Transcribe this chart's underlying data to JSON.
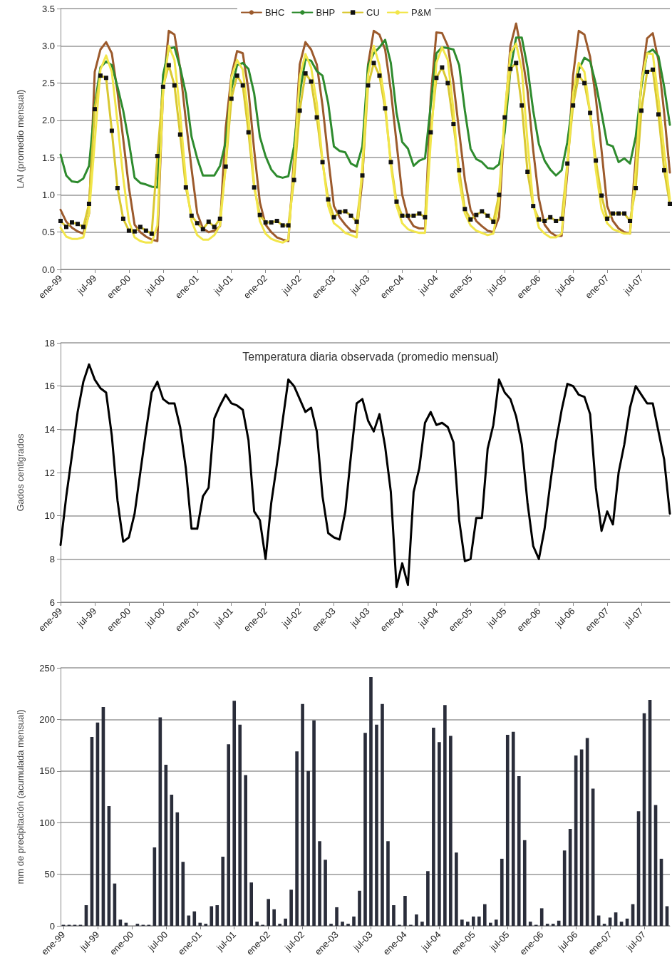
{
  "chart_data": [
    {
      "type": "line",
      "ylabel": "LAI (promedio mensual)",
      "legend": "top",
      "grid": "y",
      "ylim": [
        0,
        3.5
      ],
      "yticks": [
        {
          "value": 0,
          "label": "0.0"
        },
        {
          "value": 0.5,
          "label": "0.5"
        },
        {
          "value": 1,
          "label": "1.0"
        },
        {
          "value": 1.5,
          "label": "1.5"
        },
        {
          "value": 2,
          "label": "2.0"
        },
        {
          "value": 2.5,
          "label": "2.5"
        },
        {
          "value": 3,
          "label": "3.0"
        },
        {
          "value": 3.5,
          "label": "3.5"
        }
      ],
      "categories": [
        "ene-99",
        null,
        null,
        null,
        null,
        null,
        "jul-99",
        null,
        null,
        null,
        null,
        null,
        "ene-00",
        null,
        null,
        null,
        null,
        null,
        "jul-00",
        null,
        null,
        null,
        null,
        null,
        "ene-01",
        null,
        null,
        null,
        null,
        null,
        "jul-01",
        null,
        null,
        null,
        null,
        null,
        "ene-02",
        null,
        null,
        null,
        null,
        null,
        "jul-02",
        null,
        null,
        null,
        null,
        null,
        "ene-03",
        null,
        null,
        null,
        null,
        null,
        "jul-03",
        null,
        null,
        null,
        null,
        null,
        "ene-04",
        null,
        null,
        null,
        null,
        null,
        "jul-04",
        null,
        null,
        null,
        null,
        null,
        "ene-05",
        null,
        null,
        null,
        null,
        null,
        "jul-05",
        null,
        null,
        null,
        null,
        null,
        "ene-06",
        null,
        null,
        null,
        null,
        null,
        "jul-06",
        null,
        null,
        null,
        null,
        null,
        "ene-07",
        null,
        null,
        null,
        null,
        null,
        "jul-07",
        null,
        null,
        null,
        null,
        null
      ],
      "series": [
        {
          "name": "BHC",
          "color": "#9c5a2c",
          "values": [
            0.8,
            0.64,
            0.56,
            0.51,
            0.48,
            0.75,
            2.65,
            2.95,
            3.05,
            2.9,
            2.38,
            1.75,
            1.1,
            0.6,
            0.5,
            0.44,
            0.4,
            0.38,
            2.4,
            3.2,
            3.15,
            2.7,
            2.0,
            1.35,
            0.75,
            0.55,
            0.5,
            0.52,
            0.58,
            1.9,
            2.6,
            2.93,
            2.9,
            2.4,
            1.6,
            0.9,
            0.6,
            0.5,
            0.43,
            0.4,
            0.38,
            1.5,
            2.75,
            3.05,
            2.95,
            2.75,
            2.2,
            1.5,
            0.85,
            0.7,
            0.6,
            0.52,
            0.5,
            1.2,
            2.75,
            3.2,
            3.15,
            2.95,
            2.4,
            1.7,
            1.0,
            0.7,
            0.58,
            0.55,
            0.55,
            2.3,
            3.18,
            3.17,
            3.0,
            2.5,
            1.85,
            1.2,
            0.8,
            0.65,
            0.58,
            0.52,
            0.5,
            0.7,
            2.0,
            3.0,
            3.3,
            2.9,
            2.4,
            1.6,
            0.95,
            0.6,
            0.5,
            0.45,
            0.45,
            1.3,
            2.6,
            3.2,
            3.15,
            2.85,
            2.3,
            1.6,
            0.85,
            0.65,
            0.55,
            0.5,
            0.48,
            1.5,
            2.5,
            3.1,
            3.17,
            2.8,
            2.1,
            1.3
          ]
        },
        {
          "name": "BHP",
          "color": "#2e8b2e",
          "values": [
            1.54,
            1.26,
            1.18,
            1.17,
            1.22,
            1.39,
            2.2,
            2.71,
            2.79,
            2.74,
            2.45,
            2.13,
            1.71,
            1.23,
            1.16,
            1.14,
            1.11,
            1.1,
            2.61,
            2.96,
            2.98,
            2.71,
            2.36,
            1.78,
            1.49,
            1.26,
            1.26,
            1.26,
            1.39,
            1.71,
            2.42,
            2.74,
            2.77,
            2.69,
            2.36,
            1.78,
            1.52,
            1.34,
            1.25,
            1.23,
            1.25,
            1.65,
            2.36,
            2.82,
            2.8,
            2.66,
            2.6,
            2.23,
            1.65,
            1.59,
            1.57,
            1.42,
            1.38,
            1.65,
            2.74,
            2.9,
            2.98,
            3.08,
            2.77,
            2.1,
            1.71,
            1.62,
            1.39,
            1.46,
            1.49,
            2.2,
            2.9,
            2.98,
            2.97,
            2.95,
            2.74,
            2.13,
            1.62,
            1.48,
            1.44,
            1.36,
            1.35,
            1.41,
            1.84,
            2.68,
            3.11,
            3.11,
            2.71,
            2.13,
            1.68,
            1.46,
            1.34,
            1.26,
            1.33,
            1.71,
            2.29,
            2.68,
            2.84,
            2.79,
            2.49,
            2.1,
            1.68,
            1.65,
            1.44,
            1.49,
            1.42,
            1.78,
            2.45,
            2.9,
            2.95,
            2.86,
            2.45,
            1.94
          ]
        },
        {
          "name": "CU",
          "color": "#d9c832",
          "marker": "square",
          "values": [
            0.65,
            0.57,
            0.63,
            0.61,
            0.57,
            0.88,
            2.15,
            2.6,
            2.57,
            1.86,
            1.09,
            0.68,
            0.52,
            0.51,
            0.57,
            0.52,
            0.48,
            1.52,
            2.45,
            2.74,
            2.47,
            1.81,
            1.1,
            0.72,
            0.62,
            0.54,
            0.64,
            0.57,
            0.68,
            1.38,
            2.29,
            2.6,
            2.47,
            1.84,
            1.1,
            0.73,
            0.63,
            0.63,
            0.65,
            0.59,
            0.59,
            1.2,
            2.13,
            2.63,
            2.52,
            2.04,
            1.44,
            0.94,
            0.7,
            0.77,
            0.78,
            0.72,
            0.64,
            1.26,
            2.47,
            2.77,
            2.6,
            2.16,
            1.44,
            0.91,
            0.72,
            0.72,
            0.72,
            0.75,
            0.7,
            1.84,
            2.57,
            2.71,
            2.5,
            1.95,
            1.33,
            0.81,
            0.67,
            0.73,
            0.78,
            0.72,
            0.64,
            1.0,
            2.04,
            2.69,
            2.77,
            2.2,
            1.31,
            0.85,
            0.67,
            0.65,
            0.7,
            0.65,
            0.68,
            1.42,
            2.2,
            2.6,
            2.5,
            2.1,
            1.46,
            0.99,
            0.68,
            0.75,
            0.75,
            0.75,
            0.65,
            1.09,
            2.13,
            2.65,
            2.68,
            2.08,
            1.33,
            0.88
          ]
        },
        {
          "name": "P&M",
          "color": "#f2e64a",
          "values": [
            0.56,
            0.44,
            0.41,
            0.41,
            0.43,
            0.75,
            1.71,
            2.68,
            2.87,
            2.65,
            1.97,
            1.23,
            0.65,
            0.43,
            0.38,
            0.36,
            0.36,
            0.59,
            2.36,
            3.0,
            2.81,
            2.1,
            1.2,
            0.65,
            0.46,
            0.4,
            0.4,
            0.46,
            0.59,
            1.39,
            2.58,
            2.81,
            2.68,
            2.04,
            1.14,
            0.65,
            0.48,
            0.41,
            0.38,
            0.36,
            0.4,
            1.39,
            2.58,
            2.89,
            2.71,
            2.23,
            1.46,
            0.85,
            0.62,
            0.56,
            0.49,
            0.46,
            0.43,
            1.39,
            2.61,
            3.0,
            2.74,
            2.23,
            1.39,
            0.85,
            0.62,
            0.54,
            0.51,
            0.49,
            0.49,
            1.71,
            2.77,
            2.98,
            2.81,
            2.13,
            1.2,
            0.75,
            0.59,
            0.52,
            0.49,
            0.46,
            0.48,
            0.91,
            2.1,
            2.9,
            3.03,
            2.68,
            1.71,
            0.88,
            0.56,
            0.48,
            0.43,
            0.43,
            0.48,
            1.39,
            2.36,
            2.77,
            2.65,
            2.1,
            1.33,
            0.81,
            0.62,
            0.54,
            0.51,
            0.48,
            0.48,
            1.33,
            2.52,
            2.9,
            2.89,
            2.29,
            1.59,
            0.94
          ]
        }
      ]
    },
    {
      "type": "line",
      "title": "Temperatura diaria observada (promedio mensual)",
      "ylabel": "Gados centigrados",
      "grid": "y",
      "color": "#000000",
      "ylim": [
        6,
        18
      ],
      "yticks": [
        6,
        8,
        10,
        12,
        14,
        16,
        18
      ],
      "categories": [
        "ene-99",
        null,
        null,
        null,
        null,
        null,
        "jul-99",
        null,
        null,
        null,
        null,
        null,
        "ene-00",
        null,
        null,
        null,
        null,
        null,
        "jul-00",
        null,
        null,
        null,
        null,
        null,
        "ene-01",
        null,
        null,
        null,
        null,
        null,
        "jul-01",
        null,
        null,
        null,
        null,
        null,
        "ene-02",
        null,
        null,
        null,
        null,
        null,
        "jul-02",
        null,
        null,
        null,
        null,
        null,
        "ene-03",
        null,
        null,
        null,
        null,
        null,
        "jul-03",
        null,
        null,
        null,
        null,
        null,
        "ene-04",
        null,
        null,
        null,
        null,
        null,
        "jul-04",
        null,
        null,
        null,
        null,
        null,
        "ene-05",
        null,
        null,
        null,
        null,
        null,
        "jul-05",
        null,
        null,
        null,
        null,
        null,
        "ene-06",
        null,
        null,
        null,
        null,
        null,
        "jul-06",
        null,
        null,
        null,
        null,
        null,
        "ene-07",
        null,
        null,
        null,
        null,
        null,
        "jul-07",
        null,
        null,
        null,
        null,
        null
      ],
      "values": [
        8.65,
        10.9,
        12.8,
        14.8,
        16.2,
        17.0,
        16.3,
        15.9,
        15.7,
        13.7,
        10.7,
        8.8,
        9.0,
        10.1,
        12.0,
        13.9,
        15.7,
        16.2,
        15.4,
        15.2,
        15.2,
        14.1,
        12.2,
        9.4,
        9.4,
        10.9,
        11.3,
        14.5,
        15.1,
        15.6,
        15.2,
        15.1,
        14.9,
        13.5,
        10.2,
        9.8,
        8.0,
        10.6,
        12.4,
        14.4,
        16.3,
        16.0,
        15.4,
        14.8,
        15.0,
        13.9,
        10.9,
        9.2,
        9.0,
        8.9,
        10.2,
        12.8,
        15.2,
        15.4,
        14.4,
        13.9,
        14.7,
        13.2,
        11.1,
        6.7,
        7.8,
        6.8,
        11.1,
        12.2,
        14.3,
        14.8,
        14.2,
        14.3,
        14.1,
        13.4,
        9.8,
        7.9,
        8.0,
        9.9,
        9.9,
        13.1,
        14.2,
        16.3,
        15.7,
        15.4,
        14.6,
        13.3,
        10.6,
        8.6,
        8.0,
        9.4,
        11.5,
        13.4,
        14.9,
        16.1,
        16.0,
        15.6,
        15.5,
        14.7,
        11.3,
        9.3,
        10.2,
        9.6,
        12.0,
        13.3,
        15.0,
        16.0,
        15.6,
        15.2,
        15.2,
        13.9,
        12.6,
        10.1
      ]
    },
    {
      "type": "bar",
      "ylabel": "mm de precipitación (acumulada mensual)",
      "grid": "y",
      "color": "#2a2d3a",
      "ylim": [
        0,
        250
      ],
      "yticks": [
        0,
        50,
        100,
        150,
        200,
        250
      ],
      "categories": [
        "ene-99",
        null,
        null,
        null,
        null,
        null,
        "jul-99",
        null,
        null,
        null,
        null,
        null,
        "ene-00",
        null,
        null,
        null,
        null,
        null,
        "jul-00",
        null,
        null,
        null,
        null,
        null,
        "ene-01",
        null,
        null,
        null,
        null,
        null,
        "jul-01",
        null,
        null,
        null,
        null,
        null,
        "ene-02",
        null,
        null,
        null,
        null,
        null,
        "jul-02",
        null,
        null,
        null,
        null,
        null,
        "ene-03",
        null,
        null,
        null,
        null,
        null,
        "jul-03",
        null,
        null,
        null,
        null,
        null,
        "ene-04",
        null,
        null,
        null,
        null,
        null,
        "jul-04",
        null,
        null,
        null,
        null,
        null,
        "ene-05",
        null,
        null,
        null,
        null,
        null,
        "jul-05",
        null,
        null,
        null,
        null,
        null,
        "ene-06",
        null,
        null,
        null,
        null,
        null,
        "jul-06",
        null,
        null,
        null,
        null,
        null,
        "ene-07",
        null,
        null,
        null,
        null,
        null,
        "jul-07",
        null,
        null,
        null,
        null
      ],
      "values": [
        1,
        1,
        1,
        1,
        20,
        183,
        197,
        212,
        116,
        41,
        6,
        3,
        0,
        2,
        1,
        1,
        76,
        202,
        156,
        127,
        110,
        62,
        10,
        14,
        3,
        2,
        19,
        20,
        67,
        176,
        218,
        195,
        146,
        42,
        4,
        1,
        26,
        16,
        2,
        7,
        35,
        169,
        215,
        150,
        199,
        82,
        64,
        2,
        18,
        4,
        2,
        9,
        34,
        187,
        241,
        195,
        215,
        82,
        20,
        1,
        29,
        1,
        11,
        4,
        53,
        192,
        178,
        214,
        184,
        71,
        6,
        4,
        9,
        9,
        21,
        3,
        6,
        65,
        185,
        188,
        145,
        83,
        4,
        1,
        17,
        2,
        2,
        5,
        73,
        94,
        165,
        171,
        182,
        133,
        10,
        2,
        8,
        13,
        4,
        7,
        21,
        111,
        206,
        219,
        117,
        65,
        19
      ]
    }
  ]
}
